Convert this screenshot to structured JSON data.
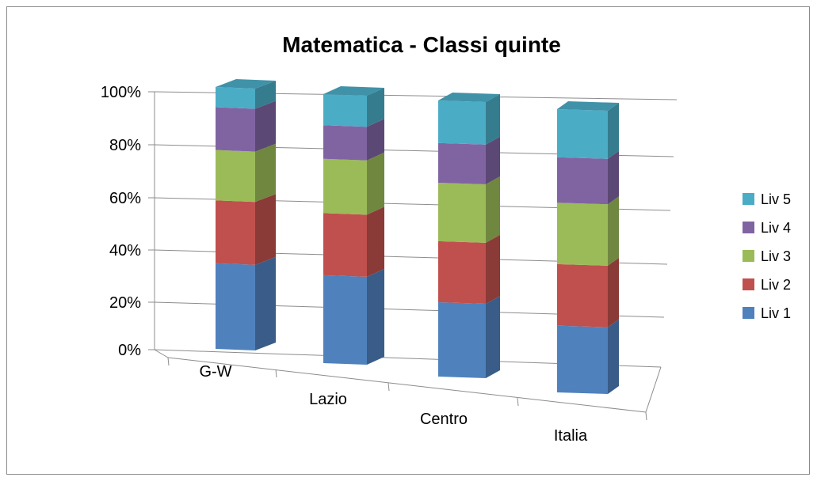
{
  "chart_data": {
    "type": "bar",
    "stacked": true,
    "percent_stacked": true,
    "three_d": true,
    "title": "Matematica - Classi quinte",
    "xlabel": "",
    "ylabel": "",
    "categories": [
      "G-W",
      "Lazio",
      "Centro",
      "Italia"
    ],
    "y_ticks": [
      "0%",
      "20%",
      "40%",
      "60%",
      "80%",
      "100%"
    ],
    "ylim": [
      0,
      100
    ],
    "grid": true,
    "legend_position": "right",
    "series": [
      {
        "name": "Liv 1",
        "color": "#4f81bd",
        "values": [
          34,
          34,
          28,
          25
        ]
      },
      {
        "name": "Liv 2",
        "color": "#c0504d",
        "values": [
          25,
          24,
          23,
          23
        ]
      },
      {
        "name": "Liv 3",
        "color": "#9bbb59",
        "values": [
          20,
          21,
          22,
          23
        ]
      },
      {
        "name": "Liv 4",
        "color": "#8064a2",
        "values": [
          17,
          13,
          15,
          17
        ]
      },
      {
        "name": "Liv 5",
        "color": "#4bacc6",
        "values": [
          8,
          12,
          16,
          18
        ]
      }
    ]
  }
}
